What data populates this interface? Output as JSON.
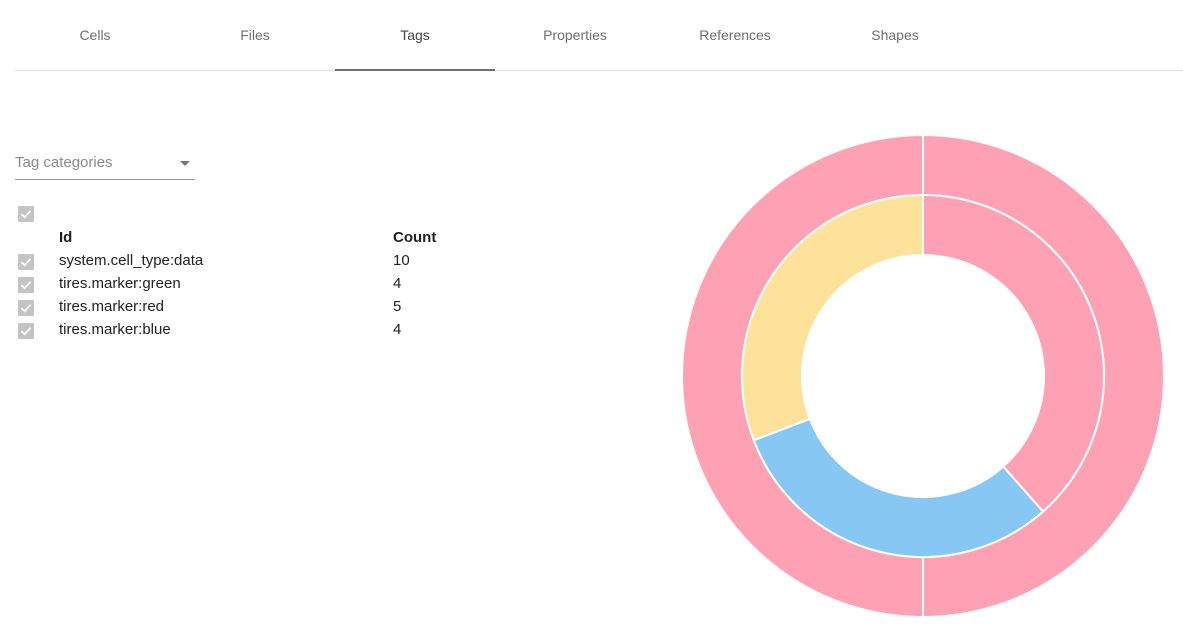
{
  "tabs": [
    {
      "label": "Cells",
      "active": false
    },
    {
      "label": "Files",
      "active": false
    },
    {
      "label": "Tags",
      "active": true
    },
    {
      "label": "Properties",
      "active": false
    },
    {
      "label": "References",
      "active": false
    },
    {
      "label": "Shapes",
      "active": false
    }
  ],
  "filter": {
    "placeholder": "Tag categories",
    "icon": "arrow-drop-down-icon"
  },
  "table": {
    "select_all_checked": true,
    "headers": {
      "id": "Id",
      "count": "Count"
    },
    "rows": [
      {
        "id": "system.cell_type:data",
        "count": "10",
        "checked": true
      },
      {
        "id": "tires.marker:green",
        "count": "4",
        "checked": true
      },
      {
        "id": "tires.marker:red",
        "count": "5",
        "checked": true
      },
      {
        "id": "tires.marker:blue",
        "count": "4",
        "checked": true
      }
    ]
  },
  "chart_data": {
    "type": "pie",
    "rings": [
      {
        "name": "outer",
        "slices": [
          {
            "label": "system.cell_type:data",
            "value": 10,
            "color": "#ffa1b5"
          }
        ]
      },
      {
        "name": "inner",
        "slices": [
          {
            "label": "tires.marker:red",
            "value": 5,
            "color": "#ffa1b5"
          },
          {
            "label": "tires.marker:blue",
            "value": 4,
            "color": "#86c7f3"
          },
          {
            "label": "tires.marker:green",
            "value": 4,
            "color": "#ffe29a"
          }
        ]
      }
    ],
    "legend": "none"
  },
  "colors": {
    "pink": "#ffa1b5",
    "blue": "#86c7f3",
    "yellow": "#ffe29a",
    "checkbox": "#c4c4c4",
    "tab_indicator": "#6d6d6d"
  }
}
